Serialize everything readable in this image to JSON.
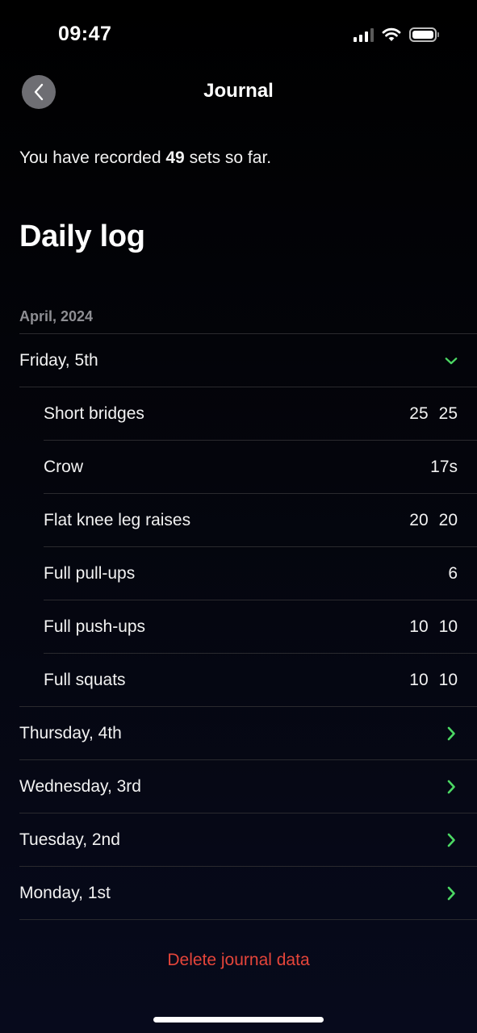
{
  "status_bar": {
    "time": "09:47",
    "icons": [
      "cellular-signal-icon",
      "wifi-icon",
      "battery-icon"
    ]
  },
  "nav": {
    "title": "Journal",
    "back_icon": "chevron-left-icon"
  },
  "summary": {
    "prefix": "You have recorded ",
    "count": "49",
    "suffix": " sets so far."
  },
  "section_heading": "Daily log",
  "month_label": "April, 2024",
  "days": [
    {
      "label": "Friday, 5th",
      "expanded": true,
      "entries": [
        {
          "name": "Short bridges",
          "values": [
            "25",
            "25"
          ]
        },
        {
          "name": "Crow",
          "values": [
            "17s"
          ]
        },
        {
          "name": "Flat knee leg raises",
          "values": [
            "20",
            "20"
          ]
        },
        {
          "name": "Full pull-ups",
          "values": [
            "6"
          ]
        },
        {
          "name": "Full push-ups",
          "values": [
            "10",
            "10"
          ]
        },
        {
          "name": "Full squats",
          "values": [
            "10",
            "10"
          ]
        }
      ]
    },
    {
      "label": "Thursday, 4th",
      "expanded": false
    },
    {
      "label": "Wednesday, 3rd",
      "expanded": false
    },
    {
      "label": "Tuesday, 2nd",
      "expanded": false
    },
    {
      "label": "Monday, 1st",
      "expanded": false
    }
  ],
  "delete_label": "Delete journal data",
  "colors": {
    "accent_green": "#4cd964",
    "destructive_red": "#e5453a",
    "secondary_text": "#8e8e93",
    "separator": "#2a2a2e"
  }
}
